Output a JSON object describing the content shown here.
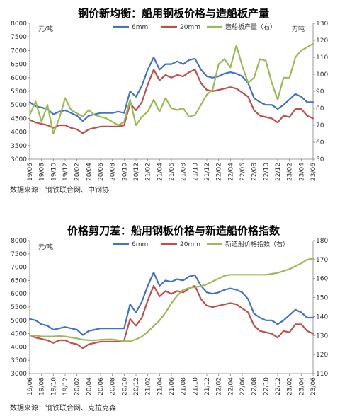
{
  "chart_data": [
    {
      "type": "line",
      "title": "钢价新均衡：船用钢板价格与造船板产量",
      "left_unit": "元/吨",
      "right_unit": "万吨",
      "ylim_left": [
        3000,
        8000
      ],
      "yticks_left": [
        3000,
        3500,
        4000,
        4500,
        5000,
        5500,
        6000,
        6500,
        7000,
        7500,
        8000
      ],
      "ylim_right": [
        50,
        130
      ],
      "yticks_right": [
        50,
        60,
        70,
        80,
        90,
        100,
        110,
        120,
        130
      ],
      "x_tick_labels": [
        "19/06",
        "19/08",
        "19/10",
        "19/12",
        "20/02",
        "20/04",
        "20/06",
        "20/08",
        "20/10",
        "20/12",
        "21/02",
        "21/04",
        "21/06",
        "21/08",
        "21/10",
        "21/12",
        "22/02",
        "22/04",
        "22/06",
        "22/08",
        "22/10",
        "22/12",
        "23/02",
        "23/04",
        "23/06"
      ],
      "legend_position": "top-center",
      "source": "数据来源：钢铁联合网、中钢协",
      "series": [
        {
          "name": "6mm",
          "axis": "left",
          "color": "#4472C4",
          "x": [
            0,
            1,
            2,
            3,
            4,
            5,
            6,
            7,
            8,
            9,
            10,
            11,
            12,
            13,
            14,
            15,
            16,
            17,
            18,
            19,
            20,
            21,
            22,
            23,
            24,
            25,
            26,
            27,
            28,
            29,
            30,
            31,
            32,
            33,
            34,
            35,
            36,
            37,
            38,
            39,
            40,
            41,
            42,
            43,
            44,
            45,
            46,
            47,
            48
          ],
          "values": [
            5100,
            4950,
            4900,
            4850,
            4650,
            4750,
            4800,
            4700,
            4600,
            4400,
            4600,
            4650,
            4700,
            4700,
            4700,
            4750,
            4700,
            5500,
            5300,
            5700,
            6300,
            6750,
            6300,
            6500,
            6500,
            6600,
            6500,
            6650,
            6700,
            6300,
            6050,
            6000,
            6050,
            6150,
            6200,
            6150,
            6050,
            5800,
            5250,
            5100,
            5000,
            5000,
            4850,
            5000,
            5200,
            5400,
            5300,
            5100,
            5100
          ]
        },
        {
          "name": "20mm",
          "axis": "left",
          "color": "#C0504D",
          "x": [
            0,
            1,
            2,
            3,
            4,
            5,
            6,
            7,
            8,
            9,
            10,
            11,
            12,
            13,
            14,
            15,
            16,
            17,
            18,
            19,
            20,
            21,
            22,
            23,
            24,
            25,
            26,
            27,
            28,
            29,
            30,
            31,
            32,
            33,
            34,
            35,
            36,
            37,
            38,
            39,
            40,
            41,
            42,
            43,
            44,
            45,
            46,
            47,
            48
          ],
          "values": [
            4450,
            4350,
            4300,
            4250,
            4150,
            4250,
            4250,
            4150,
            4100,
            3950,
            4100,
            4150,
            4200,
            4200,
            4200,
            4200,
            4250,
            5050,
            4800,
            5100,
            5750,
            6300,
            5900,
            6100,
            6000,
            6100,
            6050,
            6200,
            6300,
            5800,
            5550,
            5500,
            5550,
            5600,
            5650,
            5600,
            5450,
            5300,
            4800,
            4600,
            4550,
            4500,
            4350,
            4600,
            4550,
            4850,
            4850,
            4600,
            4500
          ]
        },
        {
          "name": "造船板产量（右）",
          "axis": "right",
          "color": "#9BBB59",
          "x": [
            0,
            1,
            2,
            3,
            4,
            5,
            6,
            7,
            8,
            9,
            10,
            11,
            12,
            13,
            14,
            15,
            16,
            17,
            18,
            19,
            20,
            21,
            22,
            23,
            24,
            25,
            26,
            27,
            28,
            29,
            30,
            31,
            32,
            33,
            34,
            35,
            36,
            37,
            38,
            39,
            40,
            41,
            42,
            43,
            44,
            45,
            46,
            47,
            48
          ],
          "values": [
            76,
            84,
            72,
            82,
            65,
            74,
            86,
            79,
            77,
            75,
            79,
            76,
            75,
            74,
            72,
            70,
            72,
            85,
            70,
            75,
            78,
            85,
            78,
            86,
            80,
            79,
            80,
            75,
            76,
            82,
            88,
            91,
            106,
            109,
            104,
            117,
            105,
            95,
            98,
            109,
            108,
            95,
            85,
            98,
            98,
            110,
            114,
            116,
            118
          ]
        }
      ]
    },
    {
      "type": "line",
      "title": "价格剪刀差：船用钢板价格与新造船价格指数",
      "left_unit": "元/吨",
      "right_unit": "",
      "ylim_left": [
        3000,
        8000
      ],
      "yticks_left": [
        3000,
        3500,
        4000,
        4500,
        5000,
        5500,
        6000,
        6500,
        7000,
        7500,
        8000
      ],
      "ylim_right": [
        110,
        180
      ],
      "yticks_right": [
        110,
        120,
        130,
        140,
        150,
        160,
        170,
        180
      ],
      "x_tick_labels": [
        "19/06",
        "19/08",
        "19/10",
        "19/12",
        "20/02",
        "20/04",
        "20/06",
        "20/08",
        "20/10",
        "20/12",
        "21/02",
        "21/04",
        "21/06",
        "21/08",
        "21/10",
        "21/12",
        "22/02",
        "22/04",
        "22/06",
        "22/08",
        "22/10",
        "22/12",
        "23/02",
        "23/04",
        "23/06"
      ],
      "legend_position": "top-center",
      "source": "数据来源：钢铁联合网、克拉克森",
      "series": [
        {
          "name": "6mm",
          "axis": "left",
          "color": "#4472C4",
          "x": [
            0,
            1,
            2,
            3,
            4,
            5,
            6,
            7,
            8,
            9,
            10,
            11,
            12,
            13,
            14,
            15,
            16,
            17,
            18,
            19,
            20,
            21,
            22,
            23,
            24,
            25,
            26,
            27,
            28,
            29,
            30,
            31,
            32,
            33,
            34,
            35,
            36,
            37,
            38,
            39,
            40,
            41,
            42,
            43,
            44,
            45,
            46,
            47,
            48
          ],
          "values": [
            5050,
            5000,
            4850,
            4800,
            4650,
            4700,
            4750,
            4700,
            4650,
            4450,
            4600,
            4650,
            4700,
            4700,
            4700,
            4700,
            4700,
            5600,
            5300,
            5700,
            6300,
            6800,
            6300,
            6500,
            6450,
            6550,
            6500,
            6650,
            6700,
            6300,
            6050,
            6000,
            6050,
            6150,
            6200,
            6150,
            6050,
            5800,
            5250,
            5100,
            5000,
            5000,
            4850,
            5000,
            5200,
            5400,
            5300,
            5100,
            5100
          ]
        },
        {
          "name": "20mm",
          "axis": "left",
          "color": "#C0504D",
          "x": [
            0,
            1,
            2,
            3,
            4,
            5,
            6,
            7,
            8,
            9,
            10,
            11,
            12,
            13,
            14,
            15,
            16,
            17,
            18,
            19,
            20,
            21,
            22,
            23,
            24,
            25,
            26,
            27,
            28,
            29,
            30,
            31,
            32,
            33,
            34,
            35,
            36,
            37,
            38,
            39,
            40,
            41,
            42,
            43,
            44,
            45,
            46,
            47,
            48
          ],
          "values": [
            4450,
            4350,
            4300,
            4250,
            4150,
            4250,
            4250,
            4150,
            4100,
            3950,
            4100,
            4150,
            4200,
            4200,
            4200,
            4200,
            4250,
            5050,
            4800,
            5100,
            5750,
            6300,
            5900,
            6100,
            6000,
            6100,
            6050,
            6200,
            6300,
            5800,
            5550,
            5500,
            5550,
            5600,
            5650,
            5600,
            5450,
            5300,
            4800,
            4600,
            4550,
            4500,
            4350,
            4600,
            4550,
            4850,
            4850,
            4600,
            4500
          ]
        },
        {
          "name": "新造船价格指数（右）",
          "axis": "right",
          "color": "#9BBB59",
          "x": [
            0,
            1,
            2,
            3,
            4,
            5,
            6,
            7,
            8,
            9,
            10,
            11,
            12,
            13,
            14,
            15,
            16,
            17,
            18,
            19,
            20,
            21,
            22,
            23,
            24,
            25,
            26,
            27,
            28,
            29,
            30,
            31,
            32,
            33,
            34,
            35,
            36,
            37,
            38,
            39,
            40,
            41,
            42,
            43,
            44,
            45,
            46,
            47,
            48
          ],
          "values": [
            130,
            130,
            129.5,
            129.5,
            129.5,
            129.7,
            129.5,
            129,
            128.5,
            127.8,
            127.5,
            127.5,
            127.8,
            128,
            128,
            127.5,
            127,
            127,
            128,
            129.5,
            132,
            135,
            138,
            142,
            147,
            151,
            154,
            155,
            155.5,
            156,
            157,
            158.5,
            160,
            161.5,
            162,
            162,
            162,
            162,
            162,
            162,
            162,
            162.5,
            163,
            164,
            165,
            166.5,
            168,
            170,
            170.5
          ]
        }
      ]
    }
  ]
}
